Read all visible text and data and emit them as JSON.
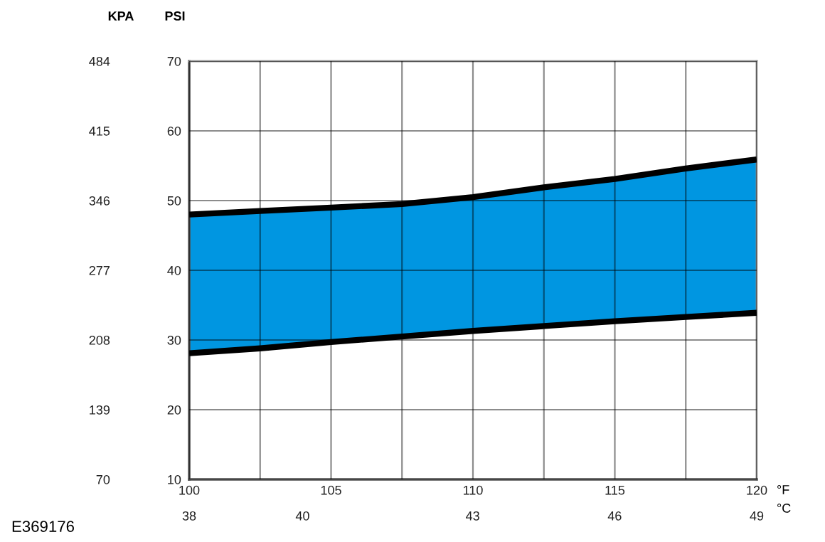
{
  "chart_data": {
    "type": "line",
    "xlabel": "°F",
    "x2label": "°C",
    "ylabel": "PSI",
    "y2label": "KPA",
    "x": [
      100,
      102.5,
      105,
      107.5,
      110,
      112.5,
      115,
      117.5,
      120
    ],
    "series": [
      {
        "color": "#000000",
        "values": [
          28.1,
          28.8,
          29.7,
          30.5,
          31.3,
          32.0,
          32.7,
          33.3,
          33.9
        ]
      },
      {
        "color": "#000000",
        "values": [
          48.0,
          48.5,
          49.0,
          49.5,
          50.5,
          51.9,
          53.1,
          54.6,
          55.9
        ],
        "lower": [
          28.1,
          28.8,
          29.7,
          30.5,
          31.3,
          32.0,
          32.7,
          33.3,
          33.9
        ],
        "upper": [
          48.0,
          48.5,
          49.0,
          49.5,
          50.5,
          51.9,
          53.1,
          54.6,
          55.9
        ]
      }
    ],
    "xlim": [
      100,
      120
    ],
    "xticks": [
      100,
      {
        "value": 102.5,
        "label": null
      },
      105,
      {
        "value": 107.5,
        "label": null
      },
      110,
      {
        "value": 112.5,
        "label": null
      },
      115,
      {
        "value": 117.5,
        "label": null
      },
      120
    ],
    "x2lim": [
      37.78,
      48.89
    ],
    "x2ticks": [
      {
        "value": 37.78,
        "label": "38"
      },
      40,
      {
        "value": 43.33,
        "label": "43"
      },
      {
        "value": 46.11,
        "label": "46"
      },
      {
        "value": 48.89,
        "label": "49"
      }
    ],
    "ylim": [
      10,
      70
    ],
    "yticks": [
      10,
      20,
      30,
      40,
      50,
      60,
      70
    ],
    "y2lim": [
      70,
      484
    ],
    "y2ticks": [
      70,
      139,
      208,
      277,
      346,
      415,
      484
    ],
    "grid": true,
    "marker": "none",
    "line_style": "solid",
    "annotations": [
      "E369176"
    ]
  }
}
